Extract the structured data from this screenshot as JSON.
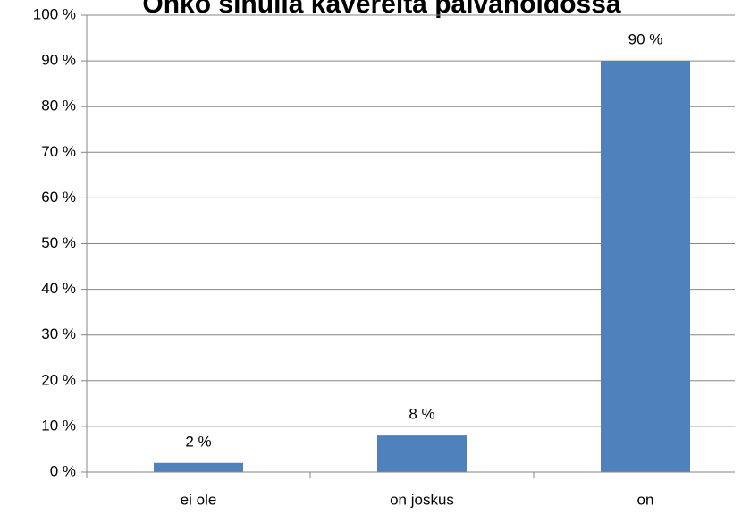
{
  "chart_data": {
    "type": "bar",
    "title": "Onko sinulla kavereita päivähoidossa",
    "categories": [
      "ei ole",
      "on joskus",
      "on"
    ],
    "values": [
      2,
      8,
      90
    ],
    "value_labels": [
      "2 %",
      "8 %",
      "90 %"
    ],
    "color": "#4f81bd",
    "ylim": [
      0,
      100
    ],
    "yticks": [
      {
        "value": 0,
        "label": "0 %"
      },
      {
        "value": 10,
        "label": "10 %"
      },
      {
        "value": 20,
        "label": "20 %"
      },
      {
        "value": 30,
        "label": "30 %"
      },
      {
        "value": 40,
        "label": "40 %"
      },
      {
        "value": 50,
        "label": "50 %"
      },
      {
        "value": 60,
        "label": "60 %"
      },
      {
        "value": 70,
        "label": "70 %"
      },
      {
        "value": 80,
        "label": "80 %"
      },
      {
        "value": 90,
        "label": "90 %"
      },
      {
        "value": 100,
        "label": "100 %"
      }
    ],
    "grid": true
  }
}
